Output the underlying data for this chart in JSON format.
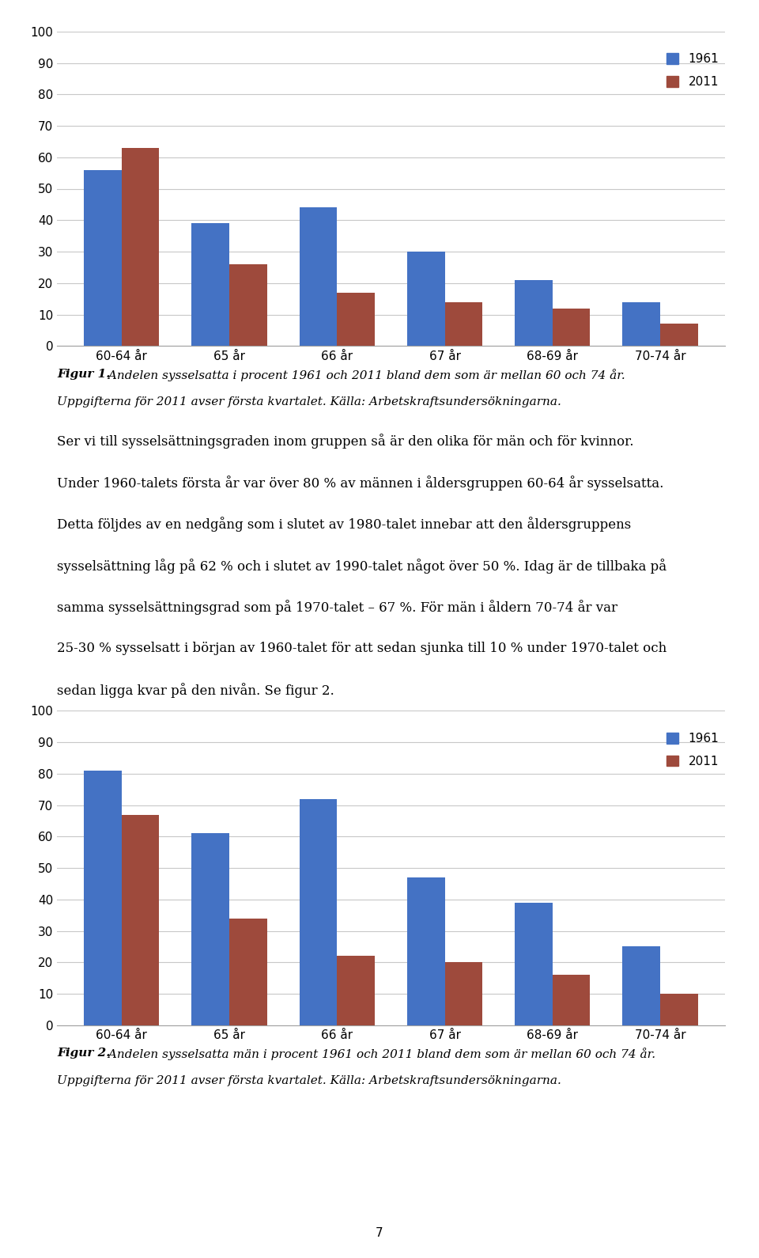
{
  "chart1": {
    "categories": [
      "60-64 år",
      "65 år",
      "66 år",
      "67 år",
      "68-69 år",
      "70-74 år"
    ],
    "values_1961": [
      56,
      39,
      44,
      30,
      21,
      14
    ],
    "values_2011": [
      63,
      26,
      17,
      14,
      12,
      7
    ],
    "color_1961": "#4472C4",
    "color_2011": "#9E4A3C",
    "ylim": [
      0,
      100
    ],
    "yticks": [
      0,
      10,
      20,
      30,
      40,
      50,
      60,
      70,
      80,
      90,
      100
    ],
    "legend_labels": [
      "1961",
      "2011"
    ]
  },
  "chart2": {
    "categories": [
      "60-64 år",
      "65 år",
      "66 år",
      "67 år",
      "68-69 år",
      "70-74 år"
    ],
    "values_1961": [
      81,
      61,
      72,
      47,
      39,
      25
    ],
    "values_2011": [
      67,
      34,
      22,
      20,
      16,
      10
    ],
    "color_1961": "#4472C4",
    "color_2011": "#9E4A3C",
    "ylim": [
      0,
      100
    ],
    "yticks": [
      0,
      10,
      20,
      30,
      40,
      50,
      60,
      70,
      80,
      90,
      100
    ],
    "legend_labels": [
      "1961",
      "2011"
    ]
  },
  "fig1_caption_bold": "Figur 1.",
  "fig1_caption_rest": " Andelen sysselsatta i procent 1961 och 2011 bland dem som är mellan 60 och 74 år.",
  "fig1_caption_line2": "Uppgifterna för 2011 avser första kvartalet. Källa: Arbetskraftsundersökningarna.",
  "fig2_caption_bold": "Figur 2.",
  "fig2_caption_rest": " Andelen sysselsatta män i procent 1961 och 2011 bland dem som är mellan 60 och 74 år.",
  "fig2_caption_line2": "Uppgifterna för 2011 avser första kvartalet. Källa: Arbetskraftsundersökningarna.",
  "body_lines": [
    "Ser vi till sysselsättningsgraden inom gruppen så är den olika för män och för kvinnor.",
    "Under 1960-talets första år var över 80 % av männen i åldersgruppen 60-64 år sysselsatta.",
    "Detta följdes av en nedgång som i slutet av 1980-talet innebar att den åldersgruppens",
    "sysselsättning låg på 62 % och i slutet av 1990-talet något över 50 %. Idag är de tillbaka på",
    "samma sysselsättningsgrad som på 1970-talet – 67 %. För män i åldern 70-74 år var",
    "25-30 % sysselsatt i början av 1960-talet för att sedan sjunka till 10 % under 1970-talet och",
    "sedan ligga kvar på den nivån. Se figur 2."
  ],
  "page_number": "7",
  "background_color": "#ffffff",
  "chart_bg_color": "#ffffff",
  "grid_color": "#c8c8c8",
  "bar_width": 0.35
}
